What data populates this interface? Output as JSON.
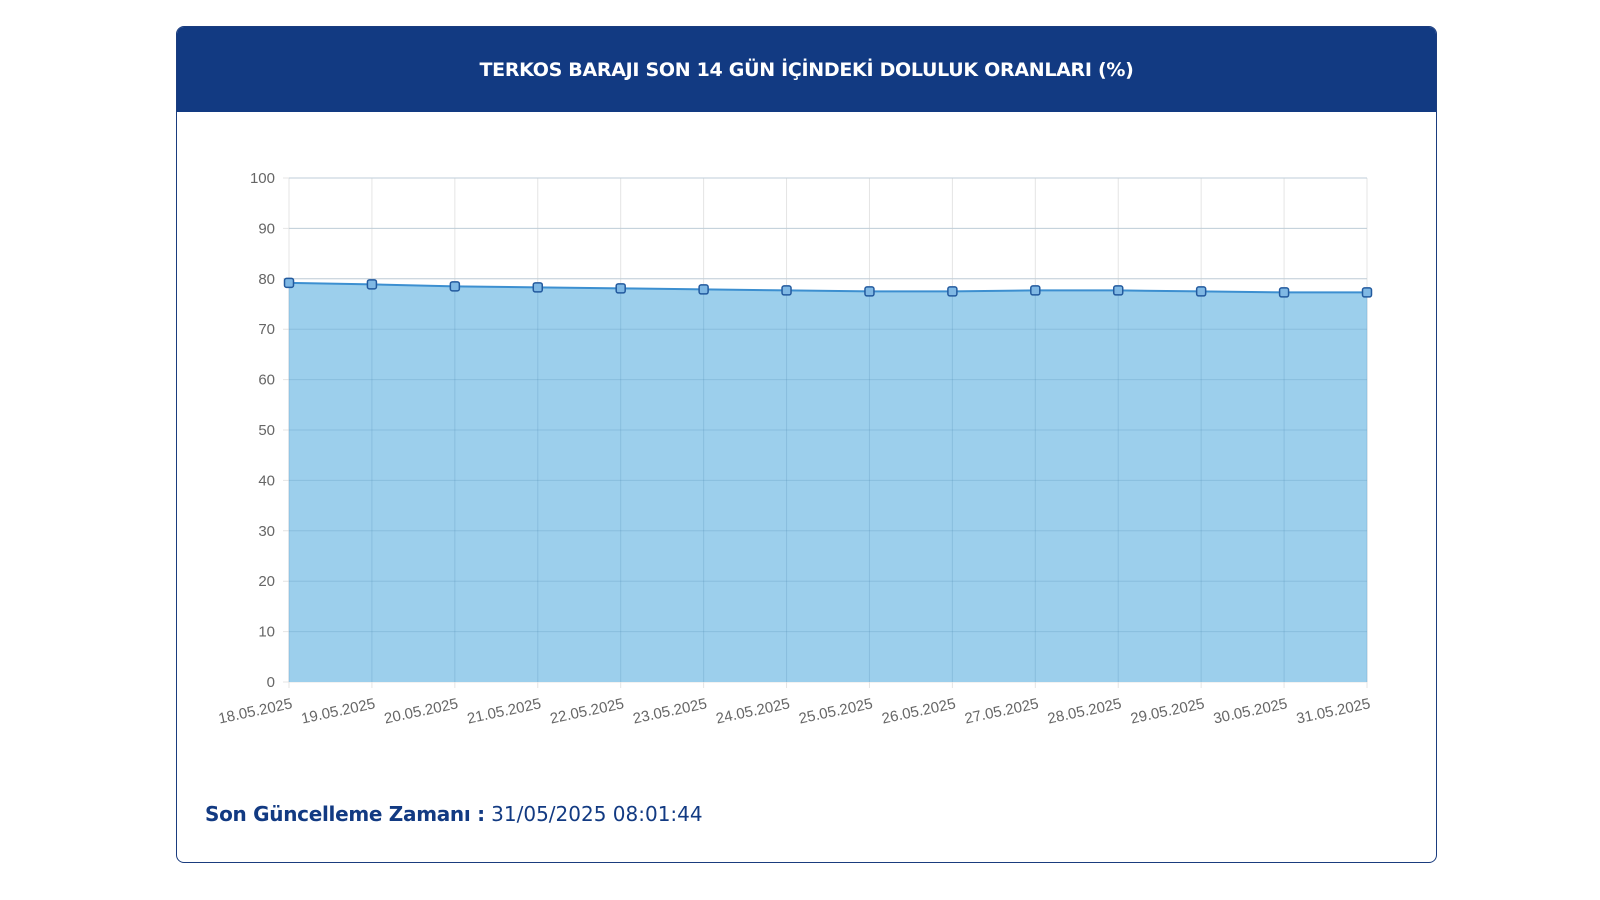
{
  "header": {
    "title": "TERKOS BARAJI SON 14 GÜN İÇİNDEKİ DOLULUK ORANLARI (%)"
  },
  "footer": {
    "label": "Son Güncelleme Zamanı :",
    "value": "31/05/2025 08:01:44"
  },
  "colors": {
    "header_bg": "#123a82",
    "area_fill": "#9ccfec",
    "line": "#3c8fd0",
    "marker_stroke": "#235a9e"
  },
  "chart_data": {
    "type": "area",
    "categories": [
      "18.05.2025",
      "19.05.2025",
      "20.05.2025",
      "21.05.2025",
      "22.05.2025",
      "23.05.2025",
      "24.05.2025",
      "25.05.2025",
      "26.05.2025",
      "27.05.2025",
      "28.05.2025",
      "29.05.2025",
      "30.05.2025",
      "31.05.2025"
    ],
    "series": [
      {
        "values": [
          79.2,
          78.9,
          78.5,
          78.3,
          78.1,
          77.9,
          77.7,
          77.5,
          77.5,
          77.7,
          77.7,
          77.5,
          77.3,
          77.3
        ]
      }
    ],
    "yticks": [
      "0",
      "10",
      "20",
      "30",
      "40",
      "50",
      "60",
      "70",
      "80",
      "90",
      "100"
    ],
    "ylim": [
      0,
      100
    ],
    "grid": true,
    "legend": "none"
  }
}
